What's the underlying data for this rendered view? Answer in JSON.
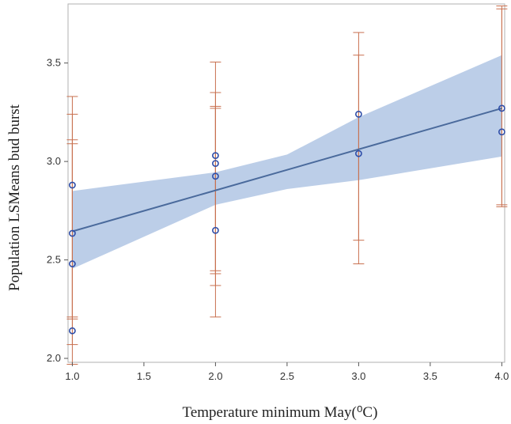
{
  "chart_data": {
    "type": "scatter",
    "title": "",
    "xlabel": "Temperature minimum May(⁰C)",
    "ylabel": "Population  LSMeans bud burst",
    "xlim": [
      0.97,
      4.02
    ],
    "ylim": [
      1.98,
      3.8
    ],
    "x_ticks": [
      1.0,
      1.5,
      2.0,
      2.5,
      3.0,
      3.5,
      4.0
    ],
    "x_tick_labels": [
      "1.0",
      "1.5",
      "2.0",
      "2.5",
      "3.0",
      "3.5",
      "4.0"
    ],
    "y_ticks": [
      2.0,
      2.5,
      3.0,
      3.5
    ],
    "y_tick_labels": [
      "2.0",
      "2.5",
      "3.0",
      "3.5"
    ],
    "grid": false,
    "points": [
      {
        "x": 1.0,
        "y": 2.88,
        "lower": 2.21,
        "upper": 3.33
      },
      {
        "x": 1.0,
        "y": 2.635,
        "lower": 2.07,
        "upper": 3.24
      },
      {
        "x": 1.0,
        "y": 2.48,
        "lower": 1.97,
        "upper": 3.11
      },
      {
        "x": 1.0,
        "y": 2.14,
        "lower": 2.2,
        "upper": 3.09
      },
      {
        "x": 2.0,
        "y": 3.03,
        "lower": 2.43,
        "upper": 3.505
      },
      {
        "x": 2.0,
        "y": 2.99,
        "lower": 2.21,
        "upper": 3.35
      },
      {
        "x": 2.0,
        "y": 2.925,
        "lower": 2.37,
        "upper": 3.28
      },
      {
        "x": 2.0,
        "y": 2.65,
        "lower": 2.445,
        "upper": 3.27
      },
      {
        "x": 3.0,
        "y": 3.24,
        "lower": 2.48,
        "upper": 3.655
      },
      {
        "x": 3.0,
        "y": 3.04,
        "lower": 2.6,
        "upper": 3.54
      },
      {
        "x": 4.0,
        "y": 3.27,
        "lower": 2.77,
        "upper": 3.79
      },
      {
        "x": 4.0,
        "y": 3.15,
        "lower": 2.78,
        "upper": 3.775
      }
    ],
    "fit_line": {
      "x": [
        1.0,
        4.0
      ],
      "y": [
        2.645,
        3.27
      ]
    },
    "confidence_band": {
      "x": [
        1.0,
        2.0,
        2.5,
        3.0,
        4.0
      ],
      "lower": [
        2.455,
        2.78,
        2.86,
        2.905,
        3.025
      ],
      "upper": [
        2.85,
        2.945,
        3.035,
        3.225,
        3.54
      ]
    },
    "colors": {
      "points": "#2f4ea8",
      "fit_line": "#4a6a9c",
      "band": "#b5c9e6",
      "error_bars": "#c8704f",
      "frame": "#b0b0b0"
    }
  }
}
